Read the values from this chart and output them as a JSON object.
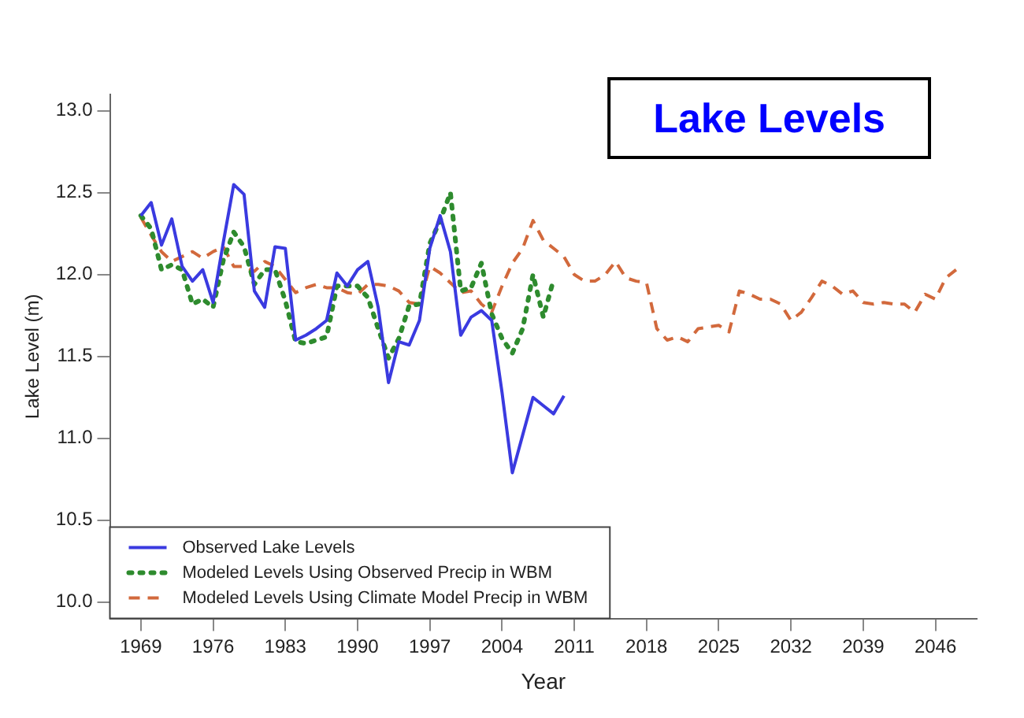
{
  "chart_data": {
    "type": "line",
    "title": "Lake Levels",
    "xlabel": "Year",
    "ylabel": "Lake Level (m)",
    "xlim": [
      1966,
      2050
    ],
    "xticks": [
      1969,
      1976,
      1983,
      1990,
      1997,
      2004,
      2011,
      2018,
      2025,
      2032,
      2039,
      2046
    ],
    "ylim": [
      9.9,
      13.1
    ],
    "yticks": [
      {
        "value": 10,
        "label": "10.0"
      },
      10.5,
      {
        "value": 11,
        "label": "11.0"
      },
      11.5,
      {
        "value": 12,
        "label": "12.0"
      },
      12.5,
      {
        "value": 13,
        "label": "13.0"
      }
    ],
    "grid": false,
    "legend": "bottom left",
    "marker": "none",
    "series": [
      {
        "name": "Observed Lake Levels",
        "color": "#3a3ae0",
        "line_style": "solid",
        "x": [
          1969,
          1970,
          1971,
          1972,
          1973,
          1974,
          1975,
          1976,
          1977,
          1978,
          1979,
          1980,
          1981,
          1982,
          1983,
          1984,
          1985,
          1986,
          1987,
          1988,
          1989,
          1990,
          1991,
          1992,
          1993,
          1994,
          1995,
          1996,
          1997,
          1998,
          1999,
          2000,
          2001,
          2002,
          2003,
          2004,
          2005,
          2006,
          2007,
          2008,
          2009,
          2010
        ],
        "values": [
          12.36,
          12.44,
          12.18,
          12.34,
          12.05,
          11.96,
          12.03,
          11.83,
          12.2,
          12.55,
          12.49,
          11.9,
          11.8,
          12.17,
          12.16,
          11.6,
          11.63,
          11.67,
          11.72,
          12.01,
          11.93,
          12.03,
          12.08,
          11.8,
          11.34,
          11.59,
          11.57,
          11.72,
          12.16,
          12.36,
          12.14,
          11.63,
          11.74,
          11.78,
          11.72,
          11.28,
          10.79,
          11.02,
          11.25,
          11.2,
          11.15,
          11.26
        ]
      },
      {
        "name": "Modeled Levels Using Observed Precip in WBM",
        "color": "#2e8b2e",
        "line_style": "dotted",
        "x": [
          1969,
          1970,
          1971,
          1972,
          1973,
          1974,
          1975,
          1976,
          1977,
          1978,
          1979,
          1980,
          1981,
          1982,
          1983,
          1984,
          1985,
          1986,
          1987,
          1988,
          1989,
          1990,
          1991,
          1992,
          1993,
          1994,
          1995,
          1996,
          1997,
          1998,
          1999,
          2000,
          2001,
          2002,
          2003,
          2004,
          2005,
          2006,
          2007,
          2008,
          2009
        ],
        "values": [
          12.36,
          12.28,
          12.03,
          12.06,
          12.03,
          11.82,
          11.85,
          11.8,
          12.09,
          12.26,
          12.17,
          11.94,
          12.03,
          12.03,
          11.84,
          11.59,
          11.58,
          11.6,
          11.62,
          11.93,
          11.93,
          11.93,
          11.86,
          11.67,
          11.49,
          11.61,
          11.81,
          11.82,
          12.19,
          12.33,
          12.5,
          11.9,
          11.92,
          12.07,
          11.76,
          11.61,
          11.52,
          11.67,
          12.0,
          11.74,
          11.97
        ]
      },
      {
        "name": "Modeled Levels Using Climate Model Precip in WBM",
        "color": "#d2693c",
        "line_style": "dashed",
        "x": [
          1969,
          1970,
          1971,
          1972,
          1973,
          1974,
          1975,
          1976,
          1977,
          1978,
          1979,
          1980,
          1981,
          1982,
          1983,
          1984,
          1985,
          1986,
          1987,
          1988,
          1989,
          1990,
          1991,
          1992,
          1993,
          1994,
          1995,
          1996,
          1997,
          1998,
          1999,
          2000,
          2001,
          2002,
          2003,
          2004,
          2005,
          2006,
          2007,
          2008,
          2009,
          2010,
          2011,
          2012,
          2013,
          2014,
          2015,
          2016,
          2017,
          2018,
          2019,
          2020,
          2021,
          2022,
          2023,
          2024,
          2025,
          2026,
          2027,
          2028,
          2029,
          2030,
          2031,
          2032,
          2033,
          2034,
          2035,
          2036,
          2037,
          2038,
          2039,
          2040,
          2041,
          2042,
          2043,
          2044,
          2045,
          2046,
          2047,
          2048
        ],
        "values": [
          12.35,
          12.24,
          12.14,
          12.08,
          12.11,
          12.14,
          12.1,
          12.14,
          12.17,
          12.05,
          12.05,
          12.02,
          12.08,
          12.05,
          11.97,
          11.89,
          11.92,
          11.94,
          11.92,
          11.92,
          11.89,
          11.88,
          11.94,
          11.94,
          11.93,
          11.9,
          11.83,
          11.82,
          12.05,
          12.01,
          11.95,
          11.89,
          11.9,
          11.82,
          11.77,
          11.93,
          12.07,
          12.16,
          12.33,
          12.21,
          12.16,
          12.11,
          12.0,
          11.96,
          11.96,
          12.0,
          12.08,
          11.98,
          11.96,
          11.95,
          11.67,
          11.6,
          11.62,
          11.59,
          11.67,
          11.68,
          11.69,
          11.65,
          11.9,
          11.88,
          11.85,
          11.85,
          11.82,
          11.72,
          11.77,
          11.86,
          11.96,
          11.93,
          11.88,
          11.9,
          11.83,
          11.82,
          11.83,
          11.82,
          11.82,
          11.77,
          11.88,
          11.85,
          11.98,
          12.03
        ]
      }
    ]
  }
}
